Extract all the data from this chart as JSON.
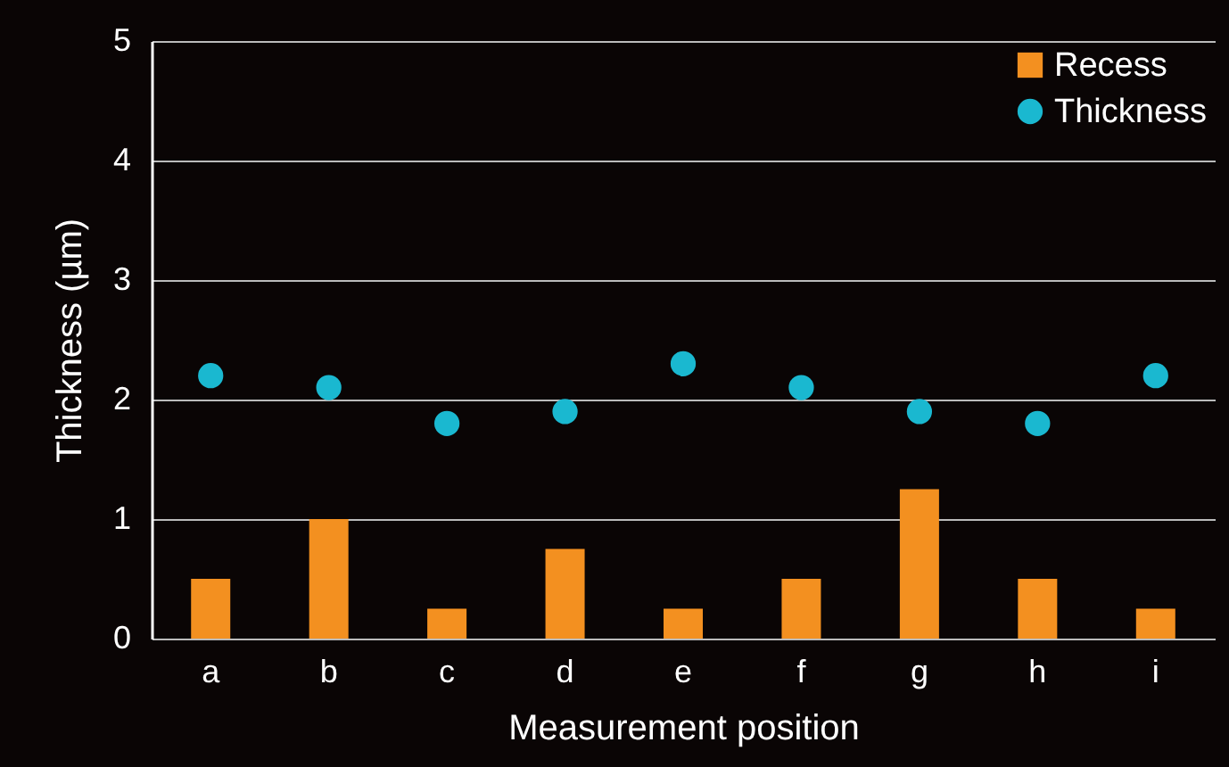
{
  "chart_data": {
    "type": "bar",
    "xlabel": "Measurement position",
    "ylabel": "Thickness (µm)",
    "categories": [
      "a",
      "b",
      "c",
      "d",
      "e",
      "f",
      "g",
      "h",
      "i"
    ],
    "series": [
      {
        "name": "Recess",
        "type": "bar",
        "color": "#f39020",
        "values": [
          0.5,
          1.0,
          0.25,
          0.75,
          0.25,
          0.5,
          1.25,
          0.5,
          0.25
        ]
      },
      {
        "name": "Thickness",
        "type": "scatter",
        "color": "#1ab8d0",
        "values": [
          2.2,
          2.1,
          1.8,
          1.9,
          2.3,
          2.1,
          1.9,
          1.8,
          2.2
        ]
      }
    ],
    "marker": "circle",
    "ylim": [
      0,
      5
    ],
    "yticks": [
      0,
      1,
      2,
      3,
      4,
      5
    ],
    "grid": "y",
    "legend": "top right"
  }
}
